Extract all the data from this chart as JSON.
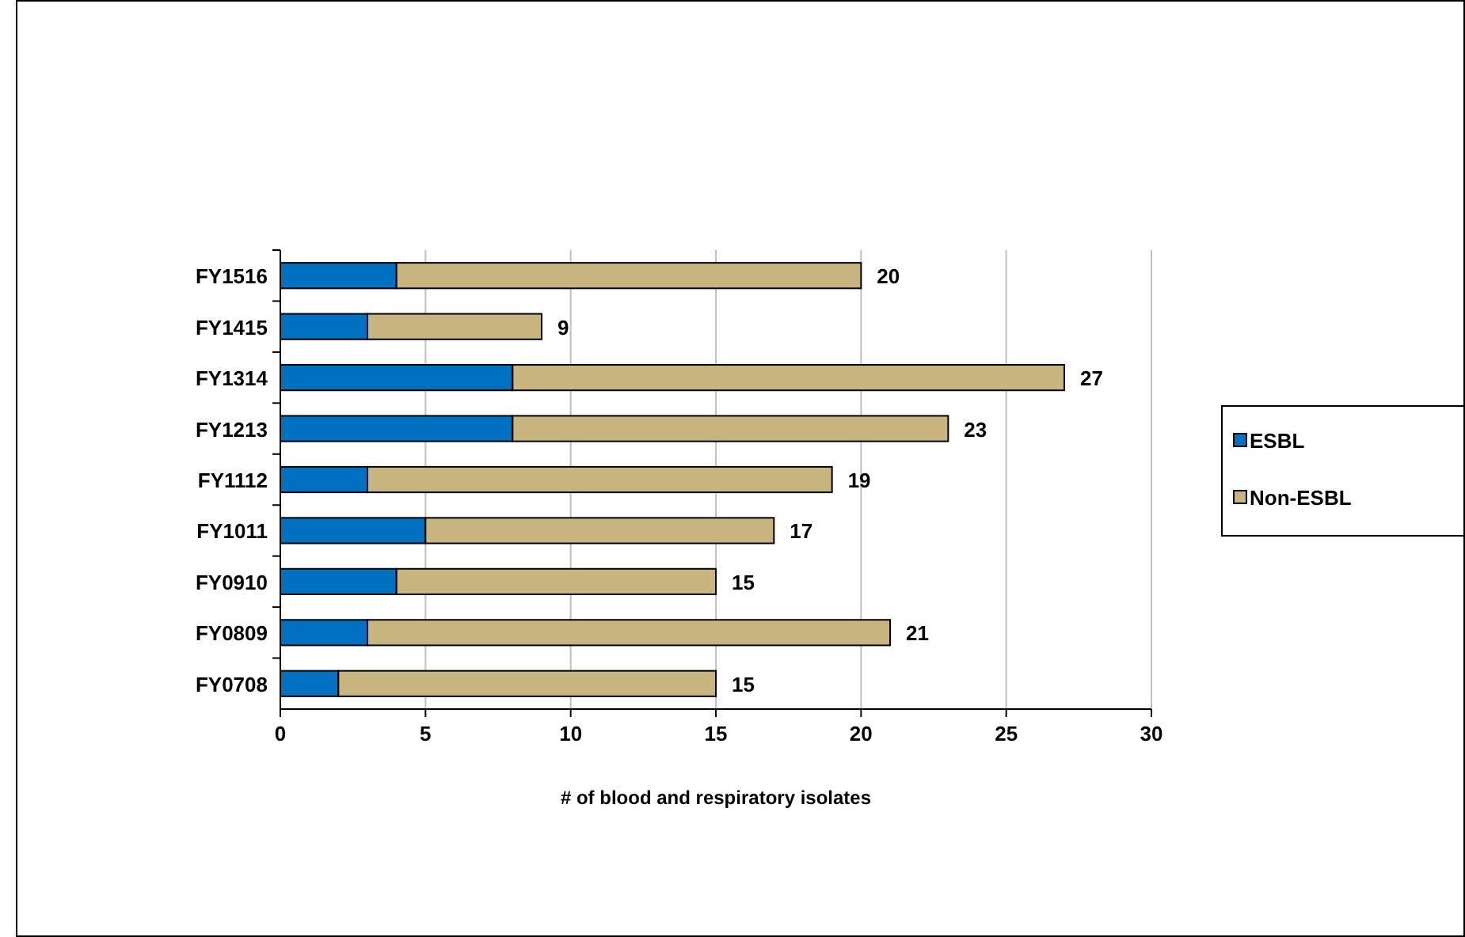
{
  "chart_data": {
    "type": "bar",
    "orientation": "horizontal",
    "stacked": true,
    "categories": [
      "FY1516",
      "FY1415",
      "FY1314",
      "FY1213",
      "FY1112",
      "FY1011",
      "FY0910",
      "FY0809",
      "FY0708"
    ],
    "series": [
      {
        "name": "ESBL",
        "color": "#0070c0",
        "values": [
          4,
          3,
          8,
          8,
          3,
          5,
          4,
          3,
          2
        ]
      },
      {
        "name": "Non-ESBL",
        "color": "#c8b47e",
        "values": [
          16,
          6,
          19,
          15,
          16,
          12,
          11,
          18,
          13
        ]
      }
    ],
    "totals": [
      "20",
      "9",
      "27",
      "23",
      "19",
      "17",
      "15",
      "21",
      "15"
    ],
    "xlabel": "# of blood and respiratory isolates",
    "xlim": [
      0,
      30
    ],
    "xticks": [
      0,
      5,
      10,
      15,
      20,
      25,
      30
    ],
    "grid": "x",
    "legend": "right"
  }
}
